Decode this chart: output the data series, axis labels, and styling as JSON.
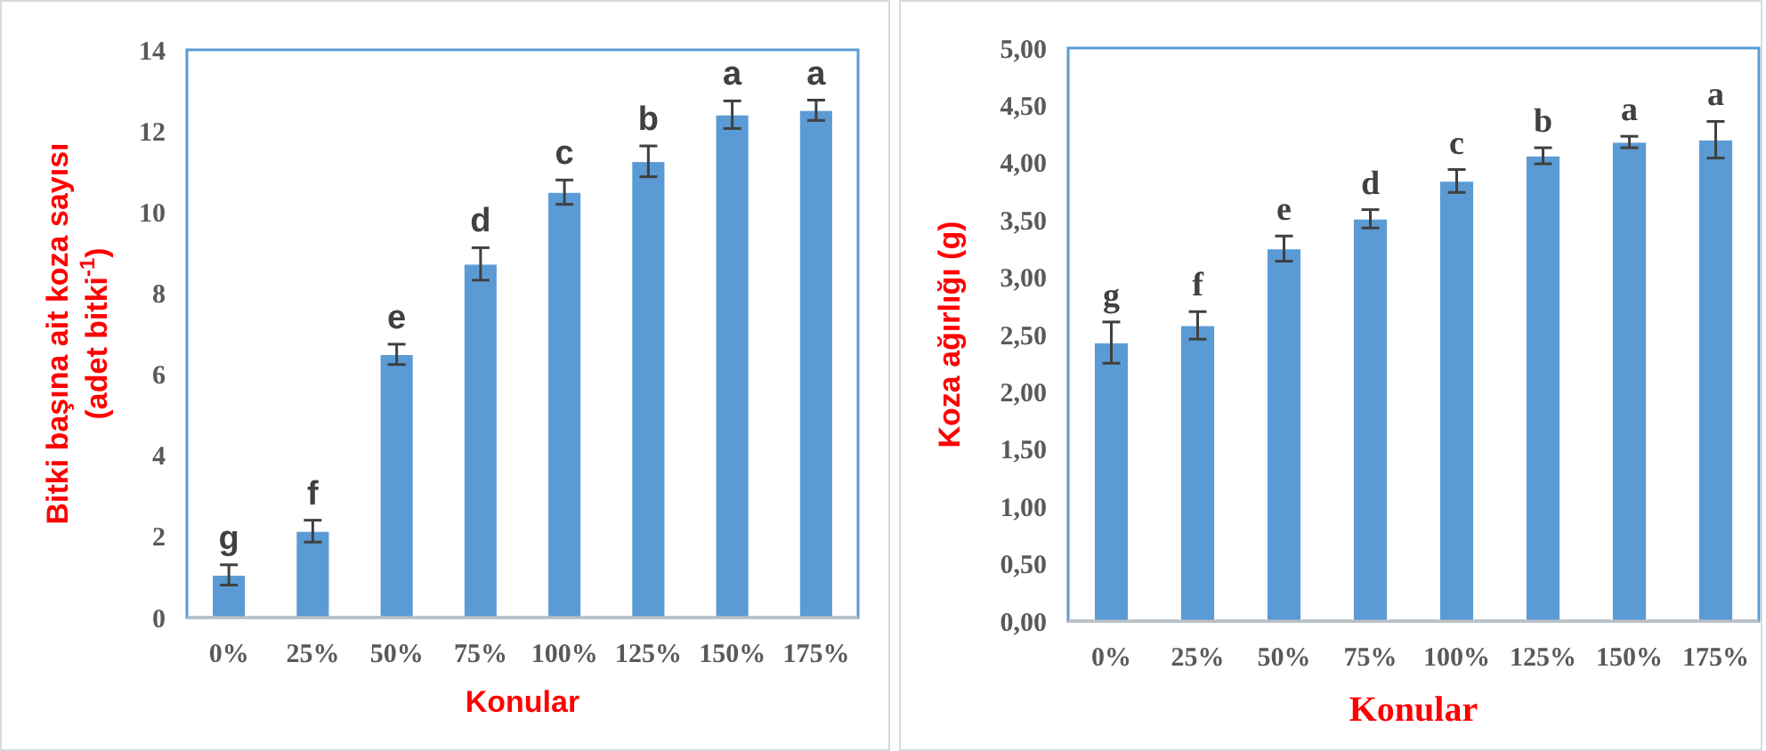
{
  "chart_data": [
    {
      "type": "bar",
      "xlabel": "Konular",
      "ylabel": "Bitki başına ait koza sayısı (adet bitki$^{-1}$)",
      "categories": [
        "0%",
        "25%",
        "50%",
        "75%",
        "100%",
        "125%",
        "150%",
        "175%"
      ],
      "series": [
        {
          "color": "#5b9bd5",
          "values": [
            1.05,
            2.13,
            6.49,
            8.72,
            10.49,
            11.25,
            12.4,
            12.51
          ],
          "errors": [
            0.25,
            0.27,
            0.25,
            0.4,
            0.3,
            0.38,
            0.34,
            0.25
          ],
          "value_labels": [
            "g",
            "f",
            "e",
            "d",
            "c",
            "b",
            "a",
            "a"
          ]
        }
      ],
      "ylim": [
        0,
        14
      ],
      "yticks": [
        0,
        2,
        4,
        6,
        8,
        10,
        12,
        14
      ]
    },
    {
      "type": "bar",
      "xlabel": "Konular",
      "ylabel": "Koza ağırlığı (g)",
      "categories": [
        "0%",
        "25%",
        "50%",
        "75%",
        "100%",
        "125%",
        "150%",
        "175%"
      ],
      "series": [
        {
          "color": "#5b9bd5",
          "values": [
            2.43,
            2.58,
            3.25,
            3.51,
            3.84,
            4.06,
            4.18,
            4.2
          ],
          "errors": [
            0.18,
            0.12,
            0.11,
            0.08,
            0.1,
            0.07,
            0.05,
            0.16
          ],
          "value_labels": [
            "g",
            "f",
            "e",
            "d",
            "c",
            "b",
            "a",
            "a"
          ]
        }
      ],
      "ylim": [
        0,
        5
      ],
      "yticks": [
        {
          "value": 0,
          "label": "0,00"
        },
        {
          "value": 0.5,
          "label": "0,50"
        },
        {
          "value": 1,
          "label": "1,00"
        },
        {
          "value": 1.5,
          "label": "1,50"
        },
        {
          "value": 2,
          "label": "2,00"
        },
        {
          "value": 2.5,
          "label": "2,50"
        },
        {
          "value": 3,
          "label": "3,00"
        },
        {
          "value": 3.5,
          "label": "3,50"
        },
        {
          "value": 4,
          "label": "4,00"
        },
        {
          "value": 4.5,
          "label": "4,50"
        },
        {
          "value": 5,
          "label": "5,00"
        }
      ]
    }
  ]
}
